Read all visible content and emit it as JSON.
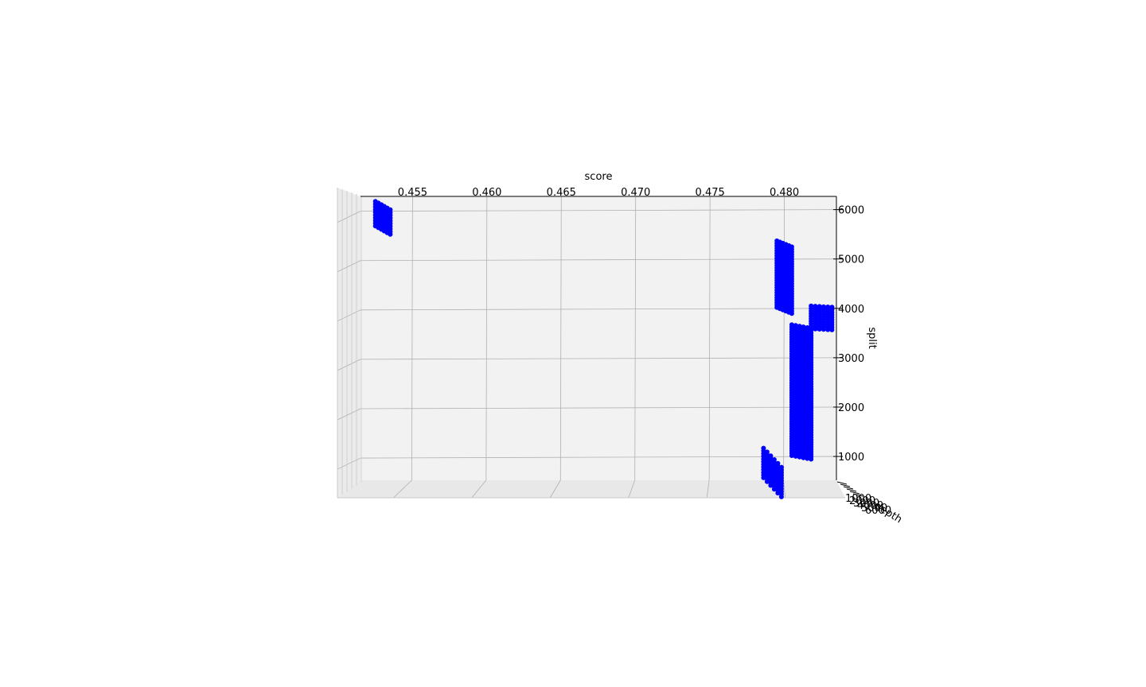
{
  "chart_data": {
    "type": "scatter",
    "projection": "3d",
    "xlabel": "score",
    "ylabel": "depth",
    "zlabel": "split",
    "x_ticks": [
      0.455,
      0.46,
      0.465,
      0.47,
      0.475,
      0.48
    ],
    "z_ticks": [
      1000,
      2000,
      3000,
      4000,
      5000,
      6000
    ],
    "depth_ticks": [
      "1000",
      "2000",
      "3000",
      "4000",
      "5000",
      "6000"
    ],
    "xlim": [
      0.4515,
      0.4835
    ],
    "zlim": [
      550,
      6300
    ],
    "grid": true,
    "marker_color": "#0000ff",
    "series": [
      {
        "clusters": [
          {
            "score": [
              0.4525,
              0.4535
            ],
            "split": [
              5700,
              6200
            ],
            "drift": 0.35
          },
          {
            "score": [
              0.4795,
              0.4805
            ],
            "split": [
              4050,
              5400
            ],
            "drift": 0.25
          },
          {
            "score": [
              0.4818,
              0.4832
            ],
            "split": [
              3620,
              4080
            ],
            "drift": 0.05
          },
          {
            "score": [
              0.4805,
              0.4818
            ],
            "split": [
              1050,
              3700
            ],
            "drift": 0.15
          },
          {
            "score": [
              0.4786,
              0.4798
            ],
            "split": [
              600,
              1200
            ],
            "drift": 0.8
          }
        ]
      }
    ]
  }
}
